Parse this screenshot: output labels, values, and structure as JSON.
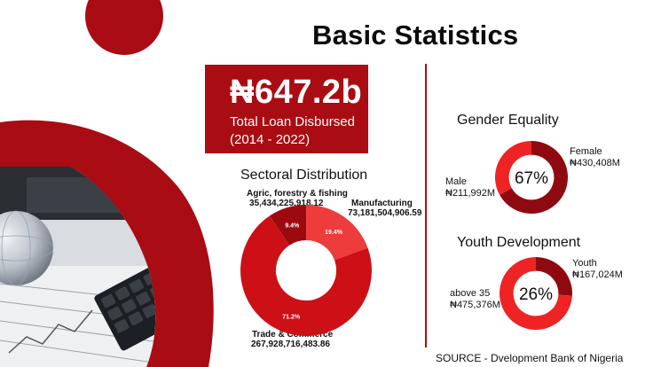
{
  "header": {
    "title": "Basic Statistics"
  },
  "kpi": {
    "value": "₦647.2b",
    "label_line1": "Total Loan Disbursed",
    "label_line2": "(2014 - 2022)"
  },
  "footer": {
    "source": "SOURCE - Dvelopment Bank of Nigeria"
  },
  "colors": {
    "accent": "#a90c13",
    "dark_red": "#8f0a10",
    "red": "#cc1016",
    "light_red": "#ee3b3b"
  },
  "chart_data": [
    {
      "type": "pie",
      "title": "Sectoral Distribution",
      "slices": [
        {
          "label": "Agric, forestry & fishing",
          "value": "35,434,225,918.12",
          "amount": 35434225918.12,
          "percent_label": "9.4%",
          "color": "#9c0a10"
        },
        {
          "label": "Manufacturing",
          "value": "73,181,504,906.59",
          "amount": 73181504906.59,
          "percent_label": "19.4%",
          "color": "#ee3b3b"
        },
        {
          "label": "Trade & Commerce",
          "value": "267,928,716,483.86",
          "amount": 267928716483.86,
          "percent_label": "71.2%",
          "color": "#cc1016"
        }
      ]
    },
    {
      "type": "pie",
      "title": "Gender Equality",
      "center_label": "67%",
      "slices": [
        {
          "label": "Female",
          "value": "₦430,408M",
          "amount": 430408,
          "color": "#8f0a10"
        },
        {
          "label": "Male",
          "value": "₦211,992M",
          "amount": 211992,
          "color": "#ee2424"
        }
      ]
    },
    {
      "type": "pie",
      "title": "Youth Development",
      "center_label": "26%",
      "slices": [
        {
          "label": "Youth",
          "value": "₦167,024M",
          "amount": 167024,
          "color": "#8f0a10"
        },
        {
          "label": "above 35",
          "value": "₦475,376M",
          "amount": 475376,
          "color": "#ee2424"
        }
      ]
    }
  ]
}
